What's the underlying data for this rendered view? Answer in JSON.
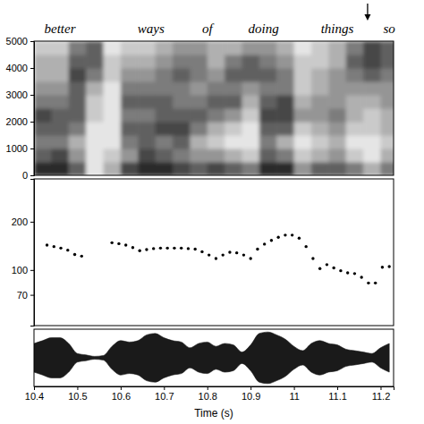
{
  "chart_data": [
    {
      "type": "heatmap",
      "xlim": [
        10.4,
        11.23
      ],
      "ylim": [
        0,
        5000
      ],
      "yticks": [
        0,
        1000,
        2000,
        3000,
        4000,
        5000
      ],
      "tick_labels": "y",
      "color": "#111111",
      "zlim": [
        0,
        9
      ],
      "xbins": [
        10.4,
        10.44,
        10.48,
        10.52,
        10.56,
        10.6,
        10.64,
        10.68,
        10.72,
        10.76,
        10.8,
        10.84,
        10.88,
        10.92,
        10.96,
        11.0,
        11.04,
        11.08,
        11.12,
        11.16,
        11.2,
        11.24
      ],
      "ybins": [
        0,
        500,
        1000,
        1500,
        2000,
        2500,
        3000,
        3500,
        4000,
        4500,
        5000
      ],
      "cells": [
        [
          8,
          6,
          5,
          6,
          7,
          5,
          4,
          3,
          3,
          2
        ],
        [
          8,
          7,
          5,
          6,
          6,
          5,
          4,
          3,
          3,
          2
        ],
        [
          6,
          4,
          3,
          5,
          6,
          6,
          6,
          7,
          6,
          5
        ],
        [
          1,
          1,
          1,
          1,
          2,
          2,
          3,
          5,
          6,
          6
        ],
        [
          3,
          2,
          1,
          1,
          1,
          1,
          1,
          2,
          2,
          1
        ],
        [
          7,
          4,
          5,
          6,
          5,
          6,
          5,
          4,
          3,
          2
        ],
        [
          8,
          7,
          6,
          6,
          5,
          6,
          5,
          4,
          3,
          2
        ],
        [
          8,
          6,
          5,
          7,
          6,
          6,
          5,
          5,
          4,
          3
        ],
        [
          7,
          5,
          6,
          7,
          6,
          5,
          5,
          6,
          5,
          4
        ],
        [
          6,
          4,
          3,
          5,
          6,
          5,
          4,
          5,
          5,
          4
        ],
        [
          7,
          4,
          2,
          3,
          5,
          6,
          5,
          4,
          3,
          3
        ],
        [
          6,
          3,
          1,
          2,
          4,
          6,
          5,
          6,
          5,
          3
        ],
        [
          5,
          2,
          1,
          1,
          2,
          3,
          4,
          6,
          6,
          4
        ],
        [
          8,
          6,
          5,
          6,
          7,
          6,
          5,
          6,
          5,
          4
        ],
        [
          8,
          5,
          3,
          6,
          7,
          7,
          5,
          5,
          4,
          3
        ],
        [
          4,
          2,
          1,
          2,
          4,
          3,
          2,
          2,
          2,
          1
        ],
        [
          6,
          3,
          2,
          3,
          4,
          4,
          3,
          3,
          2,
          2
        ],
        [
          6,
          4,
          3,
          4,
          5,
          4,
          4,
          4,
          3,
          3
        ],
        [
          5,
          2,
          1,
          2,
          3,
          3,
          4,
          5,
          6,
          5
        ],
        [
          3,
          1,
          1,
          2,
          2,
          3,
          4,
          6,
          7,
          7
        ],
        [
          5,
          3,
          2,
          3,
          3,
          4,
          4,
          5,
          6,
          6
        ]
      ],
      "annotations": [
        {
          "text": "better",
          "x": 10.46
        },
        {
          "text": "ways",
          "x": 10.67
        },
        {
          "text": "of",
          "x": 10.8
        },
        {
          "text": "doing",
          "x": 10.93
        },
        {
          "text": "things",
          "x": 11.1
        },
        {
          "text": "so",
          "x": 11.22
        }
      ],
      "arrow_x": 11.17
    },
    {
      "type": "scatter",
      "xlim": [
        10.4,
        11.23
      ],
      "ylim": [
        45,
        370
      ],
      "yticks": [
        70,
        100,
        200
      ],
      "log": "y",
      "tick_labels": "y",
      "marker": "dot",
      "color": "#000000",
      "x": [
        10.43,
        10.446,
        10.462,
        10.478,
        10.494,
        10.51,
        10.58,
        10.596,
        10.612,
        10.628,
        10.644,
        10.66,
        10.676,
        10.692,
        10.708,
        10.724,
        10.74,
        10.756,
        10.772,
        10.788,
        10.804,
        10.82,
        10.836,
        10.852,
        10.868,
        10.884,
        10.9,
        10.916,
        10.932,
        10.948,
        10.964,
        10.98,
        10.996,
        11.012,
        11.028,
        11.044,
        11.06,
        11.076,
        11.092,
        11.108,
        11.124,
        11.14,
        11.156,
        11.172,
        11.188,
        11.204,
        11.22
      ],
      "values": [
        143,
        140,
        137,
        133,
        125,
        122,
        148,
        146,
        143,
        138,
        132,
        134,
        136,
        137,
        137,
        137,
        137,
        136,
        135,
        130,
        124,
        118,
        124,
        129,
        128,
        124,
        118,
        135,
        145,
        153,
        160,
        165,
        165,
        158,
        140,
        118,
        102,
        108,
        103,
        99,
        96,
        95,
        90,
        83,
        83,
        104,
        105
      ]
    },
    {
      "type": "area",
      "xlim": [
        10.4,
        11.23
      ],
      "ylim": [
        -1,
        1
      ],
      "xticks": [
        10.4,
        10.5,
        10.6,
        10.7,
        10.8,
        10.9,
        11,
        11.1,
        11.2
      ],
      "xlabel": "Time (s)",
      "tick_labels": "x",
      "color": "#1a1a1a",
      "x": [
        10.4,
        10.42,
        10.44,
        10.46,
        10.48,
        10.5,
        10.52,
        10.54,
        10.56,
        10.58,
        10.6,
        10.62,
        10.64,
        10.66,
        10.68,
        10.7,
        10.72,
        10.74,
        10.76,
        10.78,
        10.8,
        10.82,
        10.84,
        10.86,
        10.88,
        10.9,
        10.92,
        10.94,
        10.96,
        10.98,
        11.0,
        11.02,
        11.04,
        11.06,
        11.08,
        11.1,
        11.12,
        11.14,
        11.16,
        11.18,
        11.2,
        11.22
      ],
      "values": [
        0.5,
        0.6,
        0.7,
        0.7,
        0.5,
        0.15,
        0.1,
        0.05,
        0.08,
        0.4,
        0.6,
        0.55,
        0.6,
        0.8,
        0.85,
        0.7,
        0.6,
        0.55,
        0.35,
        0.5,
        0.55,
        0.4,
        0.5,
        0.45,
        0.2,
        0.45,
        0.85,
        0.9,
        0.8,
        0.65,
        0.4,
        0.25,
        0.5,
        0.6,
        0.5,
        0.45,
        0.3,
        0.25,
        0.2,
        0.15,
        0.35,
        0.5
      ]
    }
  ]
}
